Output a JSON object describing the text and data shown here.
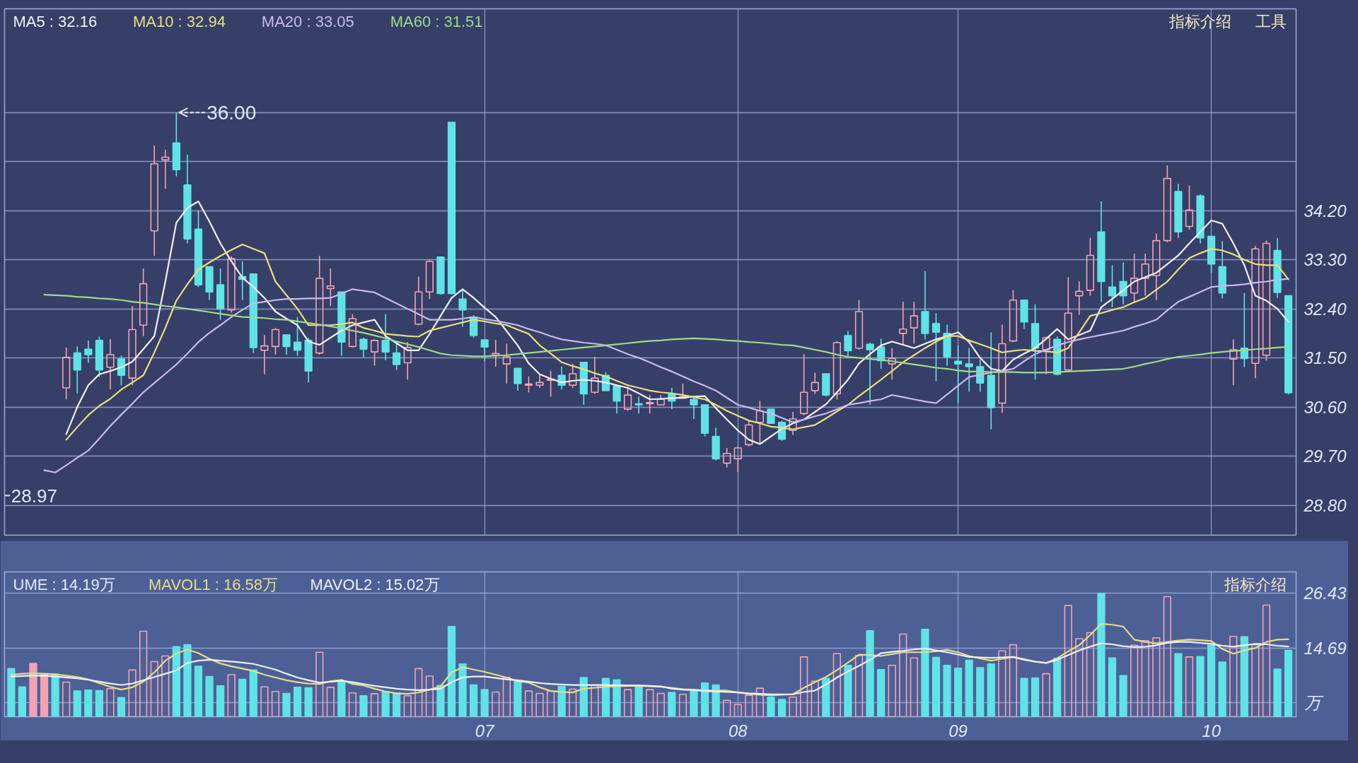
{
  "chart_data": [
    {
      "type": "candlestick",
      "categories": [
        null,
        null,
        null,
        null,
        null,
        null,
        null,
        null,
        null,
        null,
        null,
        null,
        null,
        null,
        null,
        null,
        null,
        null,
        null,
        null,
        null,
        null,
        null,
        null,
        null,
        null,
        null,
        null,
        null,
        null,
        null,
        null,
        null,
        null,
        null,
        null,
        null,
        null,
        null,
        null,
        null,
        null,
        null,
        "07",
        null,
        null,
        null,
        null,
        null,
        null,
        null,
        null,
        null,
        null,
        null,
        null,
        null,
        null,
        null,
        null,
        null,
        null,
        null,
        null,
        null,
        null,
        "08",
        null,
        null,
        null,
        null,
        null,
        null,
        null,
        null,
        null,
        null,
        null,
        null,
        null,
        null,
        null,
        null,
        null,
        null,
        null,
        "09",
        null,
        null,
        null,
        null,
        null,
        null,
        null,
        null,
        null,
        null,
        null,
        null,
        null,
        null,
        null,
        null,
        null,
        null,
        null,
        null,
        null,
        null,
        "10",
        null,
        null,
        null,
        null,
        null,
        null,
        null
      ],
      "ohlc": [
        null,
        null,
        null,
        null,
        null,
        [
          30.95,
          31.69,
          30.74,
          31.51
        ],
        [
          31.59,
          31.71,
          30.85,
          31.28
        ],
        [
          31.66,
          31.82,
          31.41,
          31.56
        ],
        [
          31.82,
          31.89,
          31.15,
          31.28
        ],
        [
          31.33,
          31.84,
          30.92,
          31.56
        ],
        [
          31.48,
          31.54,
          31.0,
          31.18
        ],
        [
          31.13,
          32.45,
          31.0,
          32.02
        ],
        [
          32.1,
          33.14,
          31.9,
          32.86
        ],
        [
          33.83,
          35.39,
          33.37,
          35.06
        ],
        [
          35.13,
          35.32,
          34.6,
          35.18
        ],
        [
          35.44,
          36.0,
          34.83,
          34.95
        ],
        [
          34.67,
          35.23,
          33.6,
          33.68
        ],
        [
          33.86,
          34.2,
          32.8,
          32.84
        ],
        [
          33.17,
          33.17,
          32.56,
          32.71
        ],
        [
          32.84,
          33.14,
          32.2,
          32.4
        ],
        [
          32.38,
          33.36,
          32.33,
          33.32
        ],
        [
          32.99,
          33.27,
          32.56,
          32.94
        ],
        [
          33.04,
          33.04,
          31.59,
          31.69
        ],
        [
          31.64,
          31.92,
          31.2,
          31.72
        ],
        [
          31.71,
          32.05,
          31.56,
          32.02
        ],
        [
          31.92,
          31.92,
          31.56,
          31.71
        ],
        [
          31.79,
          32.25,
          31.54,
          31.64
        ],
        [
          31.82,
          31.87,
          31.05,
          31.26
        ],
        [
          31.59,
          33.37,
          31.56,
          32.96
        ],
        [
          32.77,
          33.14,
          32.45,
          32.82
        ],
        [
          32.71,
          32.71,
          31.54,
          31.79
        ],
        [
          31.71,
          32.3,
          31.69,
          32.22
        ],
        [
          31.84,
          31.87,
          31.51,
          31.66
        ],
        [
          31.61,
          31.84,
          31.36,
          31.82
        ],
        [
          31.82,
          32.3,
          31.46,
          31.61
        ],
        [
          31.59,
          31.79,
          31.28,
          31.38
        ],
        [
          31.41,
          31.79,
          31.1,
          31.69
        ],
        [
          32.12,
          32.99,
          32.1,
          32.71
        ],
        [
          32.71,
          33.3,
          32.58,
          33.27
        ],
        [
          33.35,
          33.35,
          32.66,
          32.68
        ],
        [
          35.82,
          35.82,
          32.66,
          32.68
        ],
        [
          32.58,
          32.76,
          32.07,
          32.38
        ],
        [
          32.25,
          32.28,
          31.87,
          31.91
        ],
        [
          31.83,
          31.83,
          31.44,
          31.7
        ],
        [
          31.55,
          31.83,
          31.34,
          31.58
        ],
        [
          31.39,
          31.76,
          31.03,
          31.52
        ],
        [
          31.31,
          31.31,
          30.9,
          31.03
        ],
        [
          31.0,
          31.16,
          30.87,
          31.02
        ],
        [
          31.0,
          31.21,
          30.95,
          31.05
        ],
        [
          31.09,
          31.26,
          30.79,
          31.11
        ],
        [
          31.18,
          31.34,
          30.92,
          31.0
        ],
        [
          31.0,
          31.39,
          30.95,
          31.21
        ],
        [
          31.42,
          31.42,
          30.64,
          30.84
        ],
        [
          30.87,
          31.52,
          30.84,
          31.13
        ],
        [
          31.18,
          31.24,
          30.9,
          30.9
        ],
        [
          30.99,
          30.99,
          30.48,
          30.71
        ],
        [
          30.56,
          30.97,
          30.53,
          30.82
        ],
        [
          30.66,
          30.79,
          30.48,
          30.64
        ],
        [
          30.66,
          30.82,
          30.48,
          30.68
        ],
        [
          30.64,
          30.82,
          30.64,
          30.74
        ],
        [
          30.84,
          30.95,
          30.56,
          30.71
        ],
        [
          30.76,
          31.03,
          30.76,
          30.79
        ],
        [
          30.74,
          30.79,
          30.38,
          30.64
        ],
        [
          30.64,
          30.64,
          30.06,
          30.12
        ],
        [
          30.06,
          30.22,
          29.62,
          29.65
        ],
        [
          29.57,
          29.85,
          29.49,
          29.75
        ],
        [
          29.65,
          29.88,
          29.41,
          29.85
        ],
        [
          29.91,
          30.35,
          29.88,
          30.27
        ],
        [
          30.32,
          30.71,
          29.93,
          30.53
        ],
        [
          30.56,
          30.56,
          30.3,
          30.3
        ],
        [
          30.32,
          30.35,
          29.98,
          30.01
        ],
        [
          30.17,
          30.51,
          30.09,
          30.38
        ],
        [
          30.48,
          31.57,
          30.45,
          30.87
        ],
        [
          30.9,
          31.23,
          30.84,
          31.05
        ],
        [
          31.21,
          31.21,
          30.79,
          30.82
        ],
        [
          30.84,
          31.81,
          30.74,
          31.78
        ],
        [
          31.91,
          31.99,
          31.52,
          31.63
        ],
        [
          31.68,
          32.56,
          31.65,
          32.35
        ],
        [
          31.75,
          31.78,
          30.64,
          31.65
        ],
        [
          31.7,
          31.85,
          31.3,
          31.45
        ],
        [
          31.39,
          31.68,
          31.1,
          31.49
        ],
        [
          31.95,
          32.53,
          31.73,
          32.03
        ],
        [
          32.05,
          32.53,
          31.76,
          32.27
        ],
        [
          32.35,
          33.09,
          31.84,
          31.95
        ],
        [
          32.13,
          32.32,
          31.07,
          31.97
        ],
        [
          31.95,
          32.11,
          31.36,
          31.52
        ],
        [
          31.44,
          31.73,
          30.67,
          31.39
        ],
        [
          31.39,
          31.68,
          30.88,
          31.34
        ],
        [
          31.34,
          31.47,
          30.88,
          31.04
        ],
        [
          31.18,
          31.97,
          30.19,
          30.59
        ],
        [
          30.67,
          32.11,
          30.49,
          31.76
        ],
        [
          31.81,
          32.74,
          31.79,
          32.56
        ],
        [
          32.56,
          32.56,
          32.03,
          32.16
        ],
        [
          32.13,
          32.48,
          31.1,
          31.68
        ],
        [
          31.65,
          31.89,
          31.2,
          31.87
        ],
        [
          31.84,
          31.89,
          31.18,
          31.2
        ],
        [
          31.28,
          32.98,
          31.26,
          32.32
        ],
        [
          32.64,
          32.9,
          32.29,
          32.72
        ],
        [
          32.74,
          33.7,
          32.64,
          33.38
        ],
        [
          33.81,
          34.37,
          32.53,
          32.9
        ],
        [
          32.8,
          33.2,
          32.43,
          32.64
        ],
        [
          32.9,
          33.25,
          32.48,
          32.64
        ],
        [
          32.69,
          33.41,
          32.53,
          32.96
        ],
        [
          32.96,
          33.41,
          32.64,
          33.22
        ],
        [
          33.01,
          33.78,
          32.56,
          33.65
        ],
        [
          33.65,
          35.03,
          33.62,
          34.79
        ],
        [
          34.55,
          34.69,
          33.7,
          33.81
        ],
        [
          33.91,
          34.66,
          33.85,
          34.21
        ],
        [
          34.47,
          34.5,
          33.6,
          33.7
        ],
        [
          33.73,
          33.73,
          33.06,
          33.22
        ],
        [
          33.17,
          33.64,
          32.59,
          32.69
        ],
        [
          31.48,
          31.84,
          31.0,
          31.65
        ],
        [
          31.68,
          32.69,
          31.33,
          31.49
        ],
        [
          31.4,
          33.55,
          31.13,
          33.5
        ],
        [
          31.55,
          33.65,
          31.45,
          33.6
        ],
        [
          33.47,
          33.7,
          32.6,
          32.7
        ],
        [
          32.64,
          32.64,
          30.83,
          30.86
        ]
      ],
      "colors": [
        null,
        null,
        null,
        null,
        null,
        "#f4a3b4",
        "#5fe3e6",
        "#5fe3e6",
        "#5fe3e6",
        "#f4a3b4",
        "#5fe3e6",
        "#f4a3b4",
        "#f4a3b4",
        "#f4a3b4",
        "#f4a3b4",
        "#5fe3e6",
        "#5fe3e6",
        "#5fe3e6",
        "#5fe3e6",
        "#5fe3e6",
        "#f4a3b4",
        "#5fe3e6",
        "#5fe3e6",
        "#f4a3b4",
        "#f4a3b4",
        "#5fe3e6",
        "#5fe3e6",
        "#5fe3e6",
        "#f4a3b4",
        "#f4a3b4",
        "#5fe3e6",
        "#f4a3b4",
        "#5fe3e6",
        "#f4a3b4",
        "#5fe3e6",
        "#5fe3e6",
        "#f4a3b4",
        "#f4a3b4",
        "#f4a3b4",
        "#5fe3e6",
        "#5fe3e6",
        "#5fe3e6",
        "#5fe3e6",
        "#5fe3e6",
        "#f4a3b4",
        "#f4a3b4",
        "#5fe3e6",
        "#f4a3b4",
        "#f4a3b4",
        "#f4a3b4",
        "#5fe3e6",
        "#f4a3b4",
        "#5fe3e6",
        "#f4a3b4",
        "#5fe3e6",
        "#5fe3e6",
        "#f4a3b4",
        "#5fe3e6",
        "#f4a3b4",
        "#f4a3b4",
        "#5fe3e6",
        "#f4a3b4",
        "#5fe3e6",
        "#5fe3e6",
        "#5fe3e6",
        "#f4a3b4",
        "#f4a3b4",
        "#f4a3b4",
        "#f4a3b4",
        "#5fe3e6",
        "#5fe3e6",
        "#f4a3b4",
        "#f4a3b4",
        "#f4a3b4",
        "#5fe3e6",
        "#f4a3b4",
        "#5fe3e6",
        "#f4a3b4",
        "#5fe3e6",
        "#5fe3e6",
        "#f4a3b4",
        "#f4a3b4",
        "#f4a3b4",
        "#5fe3e6",
        "#5fe3e6",
        "#5fe3e6",
        "#5fe3e6",
        "#5fe3e6",
        "#5fe3e6",
        "#5fe3e6",
        "#f4a3b4",
        "#f4a3b4",
        "#5fe3e6",
        "#5fe3e6",
        "#f4a3b4",
        "#5fe3e6",
        "#f4a3b4",
        "#f4a3b4",
        "#f4a3b4",
        "#5fe3e6",
        "#5fe3e6",
        "#5fe3e6",
        "#f4a3b4",
        "#f4a3b4",
        "#f4a3b4",
        "#f4a3b4",
        "#5fe3e6",
        "#f4a3b4",
        "#5fe3e6",
        "#5fe3e6",
        "#5fe3e6",
        "#f4a3b4",
        "#5fe3e6",
        "#f4a3b4",
        "#f4a3b4",
        "#5fe3e6",
        "#5fe3e6"
      ],
      "series": [
        {
          "name": "MA5 : 32.16",
          "type": "line",
          "color": "#f2f2f6",
          "values": [
            null,
            null,
            null,
            null,
            null,
            30.1,
            30.6,
            31.0,
            31.2,
            31.26,
            31.33,
            31.43,
            31.66,
            31.9,
            32.9,
            33.98,
            34.25,
            34.37,
            34.0,
            33.6,
            33.27,
            32.97,
            32.8,
            32.6,
            32.35,
            32.22,
            32.1,
            31.8,
            31.74,
            31.87,
            32.0,
            32.1,
            32.15,
            32.2,
            31.9,
            31.77,
            31.64,
            31.64,
            31.94,
            32.27,
            32.6,
            32.76,
            32.6,
            32.42,
            32.25,
            31.99,
            31.73,
            31.4,
            31.2,
            31.12,
            31.05,
            31.08,
            31.1,
            31.08,
            31.05,
            31.0,
            30.95,
            30.85,
            30.74,
            30.75,
            30.76,
            30.77,
            30.79,
            30.8,
            30.58,
            30.37,
            30.17,
            30.0,
            29.92,
            30.06,
            30.2,
            30.3,
            30.37,
            30.51,
            30.65,
            30.87,
            31.1,
            31.4,
            31.57,
            31.73,
            31.8,
            31.74,
            31.68,
            31.76,
            31.84,
            31.9,
            31.97,
            31.79,
            31.5,
            31.3,
            31.26,
            31.47,
            31.58,
            31.68,
            31.85,
            32.03,
            31.84,
            31.92,
            32.0,
            32.43,
            32.58,
            32.74,
            32.9,
            32.98,
            33.06,
            33.22,
            33.38,
            33.6,
            33.81,
            34.02,
            33.96,
            33.6,
            33.2,
            32.64,
            32.55,
            32.4,
            32.16
          ]
        },
        {
          "name": "MA10 : 32.94",
          "type": "line",
          "color": "#e9df7c",
          "values": [
            null,
            null,
            null,
            null,
            null,
            30.0,
            30.23,
            30.45,
            30.62,
            30.75,
            30.92,
            31.05,
            31.18,
            31.6,
            32.05,
            32.55,
            32.85,
            33.12,
            33.25,
            33.37,
            33.48,
            33.58,
            33.5,
            33.42,
            32.9,
            32.65,
            32.4,
            32.1,
            32.1,
            32.1,
            32.12,
            32.15,
            32.05,
            32.0,
            31.94,
            31.92,
            31.9,
            31.89,
            32.0,
            32.05,
            32.1,
            32.15,
            32.2,
            32.17,
            32.13,
            32.1,
            32.02,
            31.94,
            31.73,
            31.58,
            31.42,
            31.35,
            31.29,
            31.22,
            31.16,
            31.08,
            31.0,
            30.95,
            30.9,
            30.87,
            30.85,
            30.82,
            30.78,
            30.74,
            30.64,
            30.53,
            30.44,
            30.35,
            30.3,
            30.24,
            30.22,
            30.19,
            30.23,
            30.27,
            30.39,
            30.52,
            30.64,
            30.8,
            30.95,
            31.1,
            31.26,
            31.42,
            31.55,
            31.68,
            31.8,
            31.9,
            31.9,
            31.82,
            31.75,
            31.68,
            31.6,
            31.63,
            31.65,
            31.63,
            31.62,
            31.6,
            31.68,
            31.97,
            32.27,
            32.32,
            32.38,
            32.43,
            32.52,
            32.6,
            32.75,
            32.9,
            33.12,
            33.33,
            33.42,
            33.5,
            33.47,
            33.4,
            33.3,
            33.22,
            33.2,
            33.2,
            32.94
          ]
        },
        {
          "name": "MA20 : 33.05",
          "type": "line",
          "color": "#c9b9ee",
          "values": [
            null,
            null,
            null,
            29.44,
            29.4,
            29.53,
            29.67,
            29.8,
            30.02,
            30.25,
            30.46,
            30.66,
            30.87,
            31.04,
            31.21,
            31.38,
            31.58,
            31.79,
            31.96,
            32.1,
            32.25,
            32.38,
            32.5,
            32.53,
            32.56,
            32.58,
            32.58,
            32.59,
            32.59,
            32.6,
            32.68,
            32.76,
            32.73,
            32.7,
            32.6,
            32.5,
            32.4,
            32.3,
            32.2,
            32.2,
            32.2,
            32.22,
            32.25,
            32.21,
            32.18,
            32.14,
            32.1,
            32.03,
            31.97,
            31.9,
            31.84,
            31.81,
            31.78,
            31.76,
            31.73,
            31.65,
            31.57,
            31.5,
            31.42,
            31.33,
            31.25,
            31.16,
            31.07,
            30.99,
            30.9,
            30.77,
            30.64,
            30.59,
            30.53,
            30.48,
            30.4,
            30.32,
            30.37,
            30.43,
            30.48,
            30.56,
            30.64,
            30.67,
            30.71,
            30.74,
            30.82,
            30.78,
            30.74,
            30.7,
            30.67,
            30.83,
            30.99,
            31.15,
            31.19,
            31.23,
            31.26,
            31.3,
            31.44,
            31.57,
            31.65,
            31.73,
            31.79,
            31.84,
            31.88,
            31.92,
            31.96,
            32.0,
            32.07,
            32.13,
            32.2,
            32.37,
            32.53,
            32.62,
            32.71,
            32.8,
            32.82,
            32.83,
            32.85,
            32.88,
            32.9,
            32.93,
            32.95
          ]
        },
        {
          "name": "MA60 : 31.51",
          "type": "line",
          "color": "#9fd98a",
          "values": [
            null,
            null,
            null,
            32.66,
            32.65,
            32.64,
            32.62,
            32.61,
            32.59,
            32.58,
            32.56,
            32.53,
            32.51,
            32.48,
            32.45,
            32.43,
            32.4,
            32.37,
            32.34,
            32.31,
            32.28,
            32.25,
            32.24,
            32.23,
            32.21,
            32.2,
            32.17,
            32.14,
            32.11,
            32.08,
            32.04,
            32.0,
            31.96,
            31.91,
            31.86,
            31.8,
            31.75,
            31.7,
            31.64,
            31.58,
            31.55,
            31.54,
            31.53,
            31.53,
            31.54,
            31.55,
            31.57,
            31.59,
            31.61,
            31.63,
            31.65,
            31.67,
            31.69,
            31.71,
            31.73,
            31.75,
            31.77,
            31.79,
            31.81,
            31.82,
            31.84,
            31.85,
            31.86,
            31.85,
            31.84,
            31.82,
            31.81,
            31.79,
            31.78,
            31.76,
            31.74,
            31.73,
            31.69,
            31.65,
            31.61,
            31.56,
            31.52,
            31.5,
            31.48,
            31.46,
            31.44,
            31.41,
            31.38,
            31.35,
            31.32,
            31.3,
            31.27,
            31.25,
            31.25,
            31.24,
            31.24,
            31.24,
            31.23,
            31.23,
            31.23,
            31.24,
            31.25,
            31.26,
            31.27,
            31.28,
            31.29,
            31.3,
            31.34,
            31.39,
            31.43,
            31.48,
            31.52,
            31.54,
            31.56,
            31.59,
            31.61,
            31.63,
            31.64,
            31.66,
            31.67,
            31.69,
            31.7
          ]
        }
      ],
      "ylim": [
        28.25,
        37.9
      ],
      "yticks": [
        {
          "value": 28.8,
          "label": "28.80"
        },
        {
          "value": 29.7,
          "label": "29.70"
        },
        {
          "value": 30.6,
          "label": "30.60"
        },
        {
          "value": 31.5,
          "label": "31.50"
        },
        {
          "value": 32.4,
          "label": "32.40"
        },
        {
          "value": 33.3,
          "label": "33.30"
        },
        {
          "value": 34.2,
          "label": "34.20"
        },
        {
          "value": 35.1,
          "label": null
        },
        {
          "value": 36.0,
          "label": null
        }
      ],
      "grid": true,
      "tick_labels": "y",
      "legend": "top left",
      "annotations": [
        "36.00",
        "28.97",
        "指标介绍",
        "工具"
      ]
    },
    {
      "type": "bar",
      "categories": [
        null,
        null,
        null,
        null,
        null,
        null,
        null,
        null,
        null,
        null,
        null,
        null,
        null,
        null,
        null,
        null,
        null,
        null,
        null,
        null,
        null,
        null,
        null,
        null,
        null,
        null,
        null,
        null,
        null,
        null,
        null,
        null,
        null,
        null,
        null,
        null,
        null,
        null,
        null,
        null,
        null,
        null,
        null,
        "07",
        null,
        null,
        null,
        null,
        null,
        null,
        null,
        null,
        null,
        null,
        null,
        null,
        null,
        null,
        null,
        null,
        null,
        null,
        null,
        null,
        null,
        null,
        "08",
        null,
        null,
        null,
        null,
        null,
        null,
        null,
        null,
        null,
        null,
        null,
        null,
        null,
        null,
        null,
        null,
        null,
        null,
        null,
        "09",
        null,
        null,
        null,
        null,
        null,
        null,
        null,
        null,
        null,
        null,
        null,
        null,
        null,
        null,
        null,
        null,
        null,
        null,
        null,
        null,
        null,
        null,
        "10",
        null,
        null,
        null,
        null,
        null,
        null,
        null
      ],
      "series": [
        {
          "type": "bar",
          "values": [
            10.3,
            6.4,
            11.4,
            9.0,
            9.1,
            7.4,
            5.5,
            5.7,
            5.6,
            6.0,
            4.1,
            10.0,
            18.3,
            11.8,
            13.0,
            15.0,
            15.4,
            10.8,
            8.6,
            6.6,
            9.0,
            8.0,
            10.0,
            6.4,
            5.4,
            5.0,
            6.3,
            6.2,
            13.8,
            6.3,
            7.6,
            5.1,
            4.5,
            4.9,
            5.4,
            5.1,
            4.5,
            10.3,
            8.7,
            6.7,
            19.3,
            11.3,
            6.8,
            5.8,
            5.3,
            8.4,
            7.6,
            5.5,
            5.0,
            5.5,
            6.5,
            5.9,
            8.4,
            6.7,
            8.2,
            7.9,
            5.8,
            6.5,
            5.8,
            5.0,
            5.2,
            4.8,
            5.5,
            7.2,
            6.8,
            3.5,
            2.6,
            4.6,
            6.1,
            4.2,
            3.7,
            4.2,
            12.8,
            7.6,
            8.2,
            13.5,
            11.0,
            13.1,
            18.4,
            10.1,
            11.0,
            17.7,
            12.6,
            18.7,
            12.7,
            11.0,
            10.4,
            12.1,
            10.5,
            11.3,
            14.1,
            15.4,
            8.2,
            8.3,
            9.2,
            12.5,
            23.8,
            16.7,
            18.0,
            26.43,
            12.6,
            8.8,
            15.3,
            16.3,
            16.9,
            25.7,
            13.5,
            12.8,
            12.9,
            15.3,
            11.7,
            17.2,
            17.1,
            15.4,
            23.9,
            10.2,
            14.19
          ],
          "colors": [
            "#5fe3e6",
            "#5fe3e6",
            "#f4a3b4",
            "#f4a3b4",
            "#5fe3e6",
            "#f4a3b4",
            "#5fe3e6",
            "#5fe3e6",
            "#5fe3e6",
            "#f4a3b4",
            "#5fe3e6",
            "#f4a3b4",
            "#f4a3b4",
            "#f4a3b4",
            "#f4a3b4",
            "#5fe3e6",
            "#5fe3e6",
            "#5fe3e6",
            "#5fe3e6",
            "#5fe3e6",
            "#f4a3b4",
            "#5fe3e6",
            "#5fe3e6",
            "#f4a3b4",
            "#f4a3b4",
            "#5fe3e6",
            "#5fe3e6",
            "#5fe3e6",
            "#f4a3b4",
            "#f4a3b4",
            "#5fe3e6",
            "#f4a3b4",
            "#5fe3e6",
            "#f4a3b4",
            "#5fe3e6",
            "#5fe3e6",
            "#f4a3b4",
            "#f4a3b4",
            "#f4a3b4",
            "#5fe3e6",
            "#5fe3e6",
            "#5fe3e6",
            "#5fe3e6",
            "#5fe3e6",
            "#f4a3b4",
            "#f4a3b4",
            "#5fe3e6",
            "#f4a3b4",
            "#f4a3b4",
            "#f4a3b4",
            "#5fe3e6",
            "#f4a3b4",
            "#5fe3e6",
            "#f4a3b4",
            "#5fe3e6",
            "#5fe3e6",
            "#f4a3b4",
            "#5fe3e6",
            "#f4a3b4",
            "#f4a3b4",
            "#5fe3e6",
            "#f4a3b4",
            "#5fe3e6",
            "#5fe3e6",
            "#5fe3e6",
            "#f4a3b4",
            "#f4a3b4",
            "#f4a3b4",
            "#f4a3b4",
            "#5fe3e6",
            "#5fe3e6",
            "#f4a3b4",
            "#f4a3b4",
            "#f4a3b4",
            "#5fe3e6",
            "#f4a3b4",
            "#5fe3e6",
            "#f4a3b4",
            "#5fe3e6",
            "#5fe3e6",
            "#f4a3b4",
            "#f4a3b4",
            "#f4a3b4",
            "#5fe3e6",
            "#5fe3e6",
            "#5fe3e6",
            "#5fe3e6",
            "#5fe3e6",
            "#5fe3e6",
            "#5fe3e6",
            "#f4a3b4",
            "#f4a3b4",
            "#5fe3e6",
            "#5fe3e6",
            "#f4a3b4",
            "#5fe3e6",
            "#f4a3b4",
            "#f4a3b4",
            "#f4a3b4",
            "#5fe3e6",
            "#5fe3e6",
            "#5fe3e6",
            "#f4a3b4",
            "#f4a3b4",
            "#f4a3b4",
            "#f4a3b4",
            "#5fe3e6",
            "#f4a3b4",
            "#5fe3e6",
            "#5fe3e6",
            "#5fe3e6",
            "#f4a3b4",
            "#5fe3e6",
            "#f4a3b4",
            "#f4a3b4",
            "#5fe3e6",
            "#5fe3e6"
          ]
        },
        {
          "name": "MAVOL1 : 16.58万",
          "type": "line",
          "color": "#e6dc8a",
          "values": [
            9.0,
            9.2,
            9.3,
            9.2,
            9.1,
            8.8,
            8.5,
            8.0,
            7.2,
            6.4,
            5.8,
            6.3,
            7.5,
            9.5,
            12.0,
            13.5,
            14.4,
            13.6,
            12.4,
            11.4,
            10.8,
            10.3,
            9.8,
            9.0,
            8.4,
            7.8,
            7.4,
            7.1,
            7.0,
            7.6,
            7.9,
            7.0,
            6.7,
            6.0,
            5.4,
            5.0,
            4.9,
            5.2,
            5.8,
            6.5,
            9.5,
            10.6,
            10.1,
            9.6,
            9.0,
            8.4,
            7.6,
            7.3,
            6.3,
            5.5,
            5.3,
            5.2,
            6.0,
            6.2,
            6.4,
            6.5,
            6.6,
            6.6,
            6.5,
            6.4,
            6.2,
            5.9,
            5.8,
            5.6,
            5.6,
            5.6,
            5.2,
            4.9,
            4.7,
            4.6,
            4.7,
            4.8,
            6.2,
            7.4,
            8.5,
            10.0,
            11.6,
            13.3,
            13.2,
            13.0,
            13.4,
            13.8,
            13.8,
            13.8,
            14.0,
            14.3,
            13.8,
            13.0,
            12.5,
            12.0,
            12.4,
            12.8,
            12.3,
            11.8,
            11.5,
            12.5,
            14.0,
            15.3,
            17.5,
            19.9,
            19.7,
            19.3,
            16.5,
            16.0,
            15.7,
            16.0,
            16.3,
            16.5,
            16.4,
            16.2,
            14.5,
            13.5,
            14.2,
            14.7,
            16.0,
            16.5,
            16.58
          ]
        },
        {
          "name": "MAVOL2 : 15.02万",
          "type": "line",
          "color": "#eef0fa",
          "values": [
            8.6,
            8.7,
            8.8,
            8.8,
            8.6,
            8.4,
            8.2,
            7.9,
            7.5,
            7.1,
            6.8,
            7.1,
            7.8,
            8.5,
            9.2,
            9.9,
            11.5,
            12.0,
            12.2,
            12.0,
            11.8,
            11.6,
            11.3,
            10.7,
            10.1,
            9.2,
            8.4,
            7.8,
            7.3,
            7.5,
            7.7,
            7.4,
            7.0,
            6.6,
            6.3,
            6.0,
            5.8,
            5.7,
            5.8,
            6.0,
            7.4,
            8.4,
            8.6,
            8.6,
            8.3,
            8.0,
            7.8,
            7.5,
            7.2,
            7.0,
            6.9,
            6.8,
            6.8,
            6.8,
            6.8,
            6.7,
            6.7,
            6.7,
            6.6,
            6.5,
            6.0,
            5.8,
            5.7,
            5.5,
            5.4,
            5.3,
            5.2,
            5.0,
            4.9,
            4.8,
            4.8,
            4.8,
            5.3,
            5.6,
            6.9,
            8.4,
            9.7,
            10.9,
            12.2,
            13.6,
            13.9,
            14.1,
            14.4,
            14.6,
            14.2,
            13.8,
            13.3,
            12.8,
            12.7,
            12.6,
            12.7,
            12.8,
            12.2,
            11.8,
            11.5,
            12.2,
            13.2,
            14.2,
            15.0,
            15.7,
            15.5,
            15.1,
            14.9,
            15.0,
            15.3,
            15.8,
            16.0,
            16.0,
            15.8,
            15.6,
            15.2,
            15.0,
            15.3,
            15.6,
            15.5,
            15.2,
            15.02
          ]
        }
      ],
      "ylim": [
        0,
        31
      ],
      "yticks": [
        26.43,
        14.69,
        {
          "value": 2.95,
          "label": "万"
        }
      ],
      "grid": true,
      "legend": "top left",
      "annotations": [
        "UME : 14.19万",
        "指标介绍"
      ]
    }
  ]
}
